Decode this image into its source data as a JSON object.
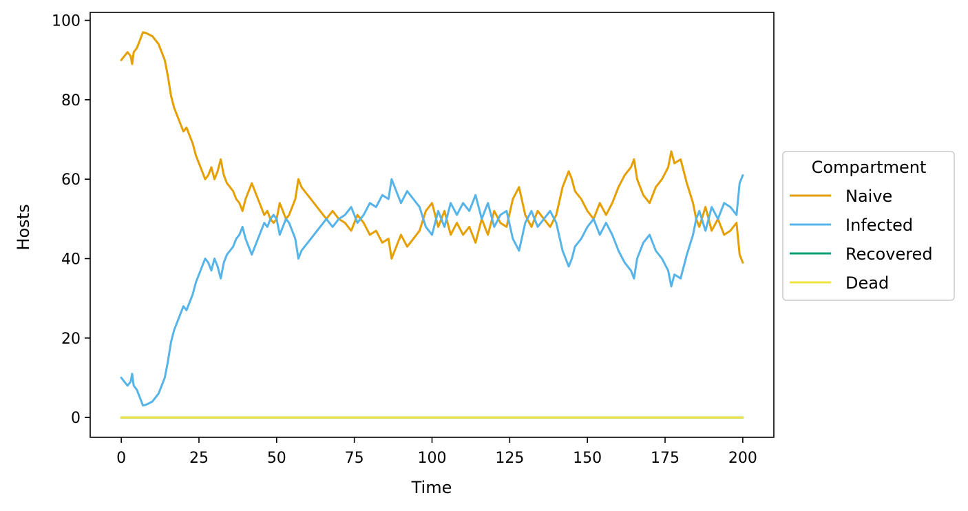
{
  "chart_data": {
    "type": "line",
    "title": "",
    "xlabel": "Time",
    "ylabel": "Hosts",
    "xlim": [
      -10,
      210
    ],
    "ylim": [
      -5,
      102
    ],
    "xticks": [
      0,
      25,
      50,
      75,
      100,
      125,
      150,
      175,
      200
    ],
    "yticks": [
      0,
      20,
      40,
      60,
      80,
      100
    ],
    "grid": false,
    "legend": {
      "title": "Compartment",
      "placement": "center-right-outside"
    },
    "series": [
      {
        "name": "Naive",
        "color": "#E69F00",
        "x": [
          0,
          1,
          2,
          3,
          3.5,
          4,
          5,
          6,
          7,
          8,
          10,
          12,
          14,
          15,
          16,
          17,
          18,
          19,
          20,
          21,
          22,
          23,
          24,
          25,
          26,
          27,
          28,
          29,
          30,
          31,
          32,
          33,
          34,
          35,
          36,
          37,
          38,
          39,
          40,
          41,
          42,
          43,
          44,
          45,
          46,
          47,
          48,
          49,
          50,
          51,
          52,
          53,
          54,
          55,
          56,
          57,
          58,
          59,
          60,
          62,
          64,
          66,
          68,
          70,
          72,
          74,
          76,
          78,
          80,
          82,
          84,
          86,
          87,
          88,
          90,
          92,
          94,
          96,
          98,
          100,
          102,
          104,
          106,
          108,
          110,
          112,
          114,
          116,
          118,
          120,
          122,
          124,
          126,
          128,
          130,
          132,
          134,
          136,
          138,
          140,
          142,
          144,
          145,
          146,
          148,
          150,
          152,
          154,
          156,
          158,
          160,
          162,
          164,
          165,
          166,
          168,
          170,
          172,
          174,
          176,
          177,
          178,
          180,
          182,
          184,
          185,
          186,
          188,
          190,
          192,
          194,
          196,
          198,
          199,
          200
        ],
        "values": [
          90,
          91,
          92,
          91,
          89,
          92,
          93,
          95,
          97,
          96.8,
          96,
          94,
          90,
          86,
          81,
          78,
          76,
          74,
          72,
          73,
          71,
          69,
          66,
          64,
          62,
          60,
          61,
          63,
          60,
          62,
          65,
          61,
          59,
          58,
          57,
          55,
          54,
          52,
          55,
          57,
          59,
          57,
          55,
          53,
          51,
          52,
          50,
          49,
          50,
          54,
          52,
          50,
          51,
          53,
          55,
          60,
          58,
          57,
          56,
          54,
          52,
          50,
          52,
          50,
          49,
          47,
          51,
          49,
          46,
          47,
          44,
          45,
          40,
          42,
          46,
          43,
          45,
          47,
          52,
          54,
          48,
          52,
          46,
          49,
          46,
          48,
          44,
          50,
          46,
          52,
          49,
          48,
          55,
          58,
          51,
          48,
          52,
          50,
          48,
          51,
          58,
          62,
          60,
          57,
          55,
          52,
          50,
          54,
          51,
          54,
          58,
          61,
          63,
          65,
          60,
          56,
          54,
          58,
          60,
          63,
          67,
          64,
          65,
          59,
          54,
          50,
          48,
          53,
          47,
          50,
          46,
          47,
          49,
          41,
          39
        ]
      },
      {
        "name": "Infected",
        "color": "#56B4E9",
        "x": [
          0,
          1,
          2,
          3,
          3.5,
          4,
          5,
          6,
          7,
          8,
          10,
          12,
          14,
          15,
          16,
          17,
          18,
          19,
          20,
          21,
          22,
          23,
          24,
          25,
          26,
          27,
          28,
          29,
          30,
          31,
          32,
          33,
          34,
          35,
          36,
          37,
          38,
          39,
          40,
          41,
          42,
          43,
          44,
          45,
          46,
          47,
          48,
          49,
          50,
          51,
          52,
          53,
          54,
          55,
          56,
          57,
          58,
          59,
          60,
          62,
          64,
          66,
          68,
          70,
          72,
          74,
          76,
          78,
          80,
          82,
          84,
          86,
          87,
          88,
          90,
          92,
          94,
          96,
          98,
          100,
          102,
          104,
          106,
          108,
          110,
          112,
          114,
          116,
          118,
          120,
          122,
          124,
          126,
          128,
          130,
          132,
          134,
          136,
          138,
          140,
          142,
          144,
          145,
          146,
          148,
          150,
          152,
          154,
          156,
          158,
          160,
          162,
          164,
          165,
          166,
          168,
          170,
          172,
          174,
          176,
          177,
          178,
          180,
          182,
          184,
          185,
          186,
          188,
          190,
          192,
          194,
          196,
          198,
          199,
          200
        ],
        "values": [
          10,
          9,
          8,
          9,
          11,
          8,
          7,
          5,
          3,
          3.2,
          4,
          6,
          10,
          14,
          19,
          22,
          24,
          26,
          28,
          27,
          29,
          31,
          34,
          36,
          38,
          40,
          39,
          37,
          40,
          38,
          35,
          39,
          41,
          42,
          43,
          45,
          46,
          48,
          45,
          43,
          41,
          43,
          45,
          47,
          49,
          48,
          50,
          51,
          50,
          46,
          48,
          50,
          49,
          47,
          45,
          40,
          42,
          43,
          44,
          46,
          48,
          50,
          48,
          50,
          51,
          53,
          49,
          51,
          54,
          53,
          56,
          55,
          60,
          58,
          54,
          57,
          55,
          53,
          48,
          46,
          52,
          48,
          54,
          51,
          54,
          52,
          56,
          50,
          54,
          48,
          51,
          52,
          45,
          42,
          49,
          52,
          48,
          50,
          52,
          49,
          42,
          38,
          40,
          43,
          45,
          48,
          50,
          46,
          49,
          46,
          42,
          39,
          37,
          35,
          40,
          44,
          46,
          42,
          40,
          37,
          33,
          36,
          35,
          41,
          46,
          50,
          52,
          47,
          53,
          50,
          54,
          53,
          51,
          59,
          61
        ]
      },
      {
        "name": "Recovered",
        "color": "#009E73",
        "x": [
          0,
          200
        ],
        "values": [
          0,
          0
        ]
      },
      {
        "name": "Dead",
        "color": "#F0E442",
        "x": [
          0,
          200
        ],
        "values": [
          0,
          0
        ]
      }
    ]
  }
}
